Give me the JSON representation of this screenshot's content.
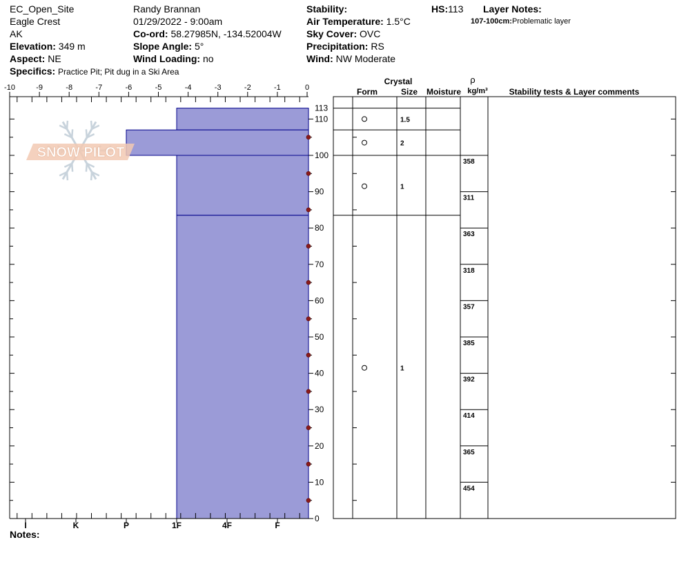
{
  "header": {
    "site": "EC_Open_Site",
    "location": "Eagle Crest",
    "state": "AK",
    "elevation_label": "Elevation:",
    "elevation_value": "349 m",
    "aspect_label": "Aspect:",
    "aspect_value": "NE",
    "specifics_label": "Specifics:",
    "specifics_value": "Practice Pit; Pit dug in a Ski Area",
    "observer": "Randy Brannan",
    "datetime": "01/29/2022 - 9:00am",
    "coord_label": "Co-ord:",
    "coord_value": "58.27985N, -134.52004W",
    "slope_label": "Slope Angle:",
    "slope_value": "5°",
    "wind_loading_label": "Wind Loading:",
    "wind_loading_value": "no",
    "stability_label": "Stability:",
    "stability_value": "",
    "air_temp_label": "Air Temperature:",
    "air_temp_value": "1.5°C",
    "sky_label": "Sky Cover:",
    "sky_value": "OVC",
    "precip_label": "Precipitation:",
    "precip_value": "RS",
    "wind_label": "Wind:",
    "wind_value": "NW Moderate",
    "hs_label": "HS:",
    "hs_value": "113",
    "layer_notes_label": "Layer Notes:",
    "layer_note_range": "107-100cm:",
    "layer_note_text": "Problematic layer",
    "notes_label": "Notes:"
  },
  "logo_text": "SNOW PILOT",
  "columns": {
    "crystal": "Crystal",
    "form": "Form",
    "size": "Size",
    "moisture": "Moisture",
    "rho": "ρ",
    "density_unit": "kg/m³",
    "comments": "Stability tests & Layer comments"
  },
  "chart_data": {
    "type": "bar",
    "description": "Snow pit profile: hand hardness layers vs height, temperature profile",
    "temperature_axis": {
      "ticks": [
        -10,
        -9,
        -8,
        -7,
        -6,
        -5,
        -4,
        -3,
        -2,
        -1,
        0
      ],
      "range": [
        -10,
        0
      ],
      "unit": "°C"
    },
    "hardness_axis": {
      "labels": [
        "I",
        "K",
        "P",
        "1F",
        "4F",
        "F"
      ]
    },
    "height_axis": {
      "range": [
        0,
        113
      ],
      "ticks": [
        0,
        10,
        20,
        30,
        40,
        50,
        60,
        70,
        80,
        90,
        100,
        110,
        113
      ]
    },
    "layers": [
      {
        "top": 113,
        "bottom": 107,
        "hardness": "1F",
        "form": "○",
        "size": "1.5"
      },
      {
        "top": 107,
        "bottom": 100,
        "hardness": "P",
        "form": "○",
        "size": "2"
      },
      {
        "top": 100,
        "bottom": 83.5,
        "hardness": "1F",
        "form": "○",
        "size": "1"
      },
      {
        "top": 83.5,
        "bottom": 0,
        "hardness": "1F",
        "form": "○",
        "size": "1"
      }
    ],
    "temperature_points": [
      {
        "height": 105,
        "temp": 0
      },
      {
        "height": 95,
        "temp": 0
      },
      {
        "height": 85,
        "temp": 0
      },
      {
        "height": 75,
        "temp": 0
      },
      {
        "height": 65,
        "temp": 0
      },
      {
        "height": 55,
        "temp": 0
      },
      {
        "height": 45,
        "temp": 0
      },
      {
        "height": 35,
        "temp": 0
      },
      {
        "height": 25,
        "temp": 0
      },
      {
        "height": 15,
        "temp": 0
      },
      {
        "height": 5,
        "temp": 0
      }
    ],
    "density": [
      {
        "top": 100,
        "bottom": 90,
        "value": "358"
      },
      {
        "top": 90,
        "bottom": 80,
        "value": "311"
      },
      {
        "top": 80,
        "bottom": 70,
        "value": "363"
      },
      {
        "top": 70,
        "bottom": 60,
        "value": "318"
      },
      {
        "top": 60,
        "bottom": 50,
        "value": "357"
      },
      {
        "top": 50,
        "bottom": 40,
        "value": "385"
      },
      {
        "top": 40,
        "bottom": 30,
        "value": "392"
      },
      {
        "top": 30,
        "bottom": 20,
        "value": "414"
      },
      {
        "top": 20,
        "bottom": 10,
        "value": "365"
      },
      {
        "top": 10,
        "bottom": 0,
        "value": "454"
      }
    ],
    "colors": {
      "layer_fill": "#9b9bd7",
      "layer_stroke": "#00008b",
      "temp_point": "#8b1a1a"
    }
  }
}
